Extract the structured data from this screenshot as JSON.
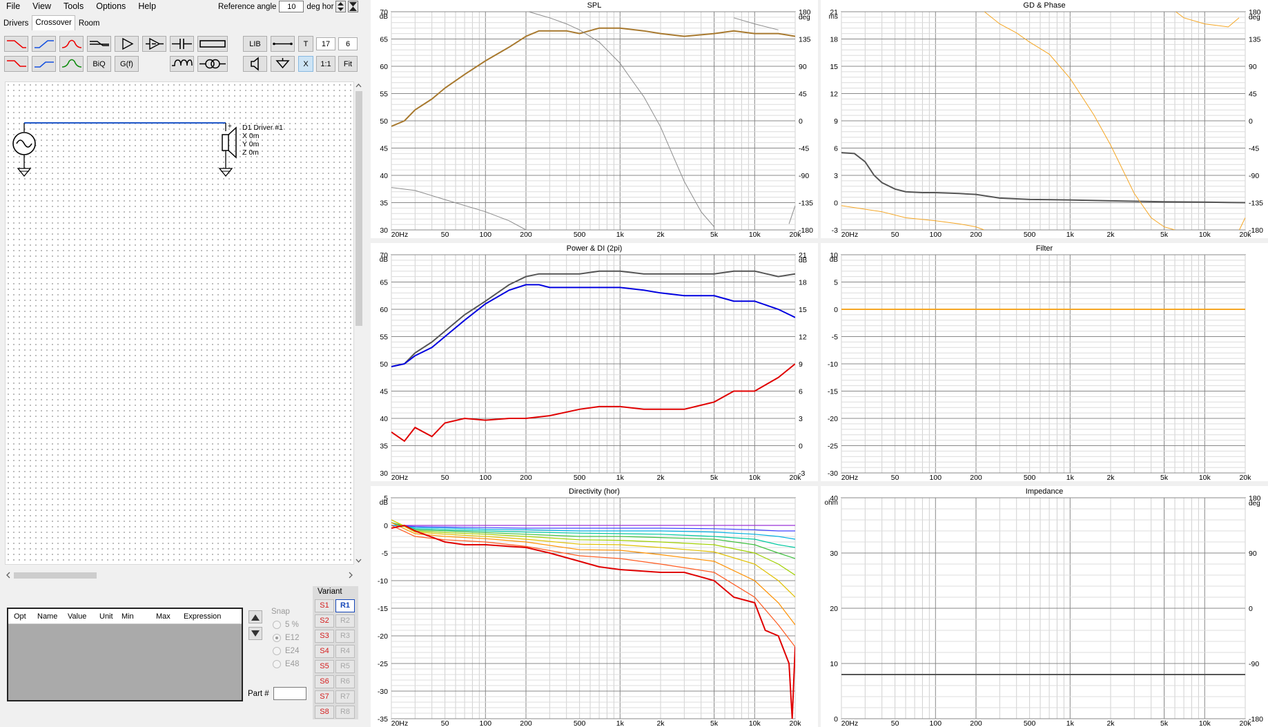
{
  "menu": [
    "File",
    "View",
    "Tools",
    "Options",
    "Help"
  ],
  "reference_angle": {
    "label": "Reference angle",
    "value": "10",
    "unit": "deg hor"
  },
  "tabs": [
    "Drivers",
    "Crossover",
    "Room"
  ],
  "toolbar": {
    "lib": "LIB",
    "t": "T",
    "val1": "17",
    "val2": "6",
    "biq": "BiQ",
    "gf": "G(f)",
    "x": "X",
    "one_to_one": "1:1",
    "fit": "Fit"
  },
  "schematic": {
    "driver_label": "D1 Driver #1",
    "x": "X 0m",
    "y": "Y 0m",
    "z": "Z 0m",
    "plus": "+"
  },
  "opt_columns": [
    "Opt",
    "Name",
    "Value",
    "Unit",
    "Min",
    "Max",
    "Expression"
  ],
  "snap": {
    "label": "Snap",
    "options": [
      "5 %",
      "E12",
      "E24",
      "E48"
    ],
    "selected": "E12"
  },
  "part": {
    "label": "Part #",
    "value": ""
  },
  "variant": {
    "title": "Variant",
    "s": [
      "S1",
      "S2",
      "S3",
      "S4",
      "S5",
      "S6",
      "S7",
      "S8"
    ],
    "r": [
      "R1",
      "R2",
      "R3",
      "R4",
      "R5",
      "R6",
      "R7",
      "R8"
    ],
    "selected": "R1"
  },
  "freq_ticks": [
    "20Hz",
    "50",
    "100",
    "200",
    "500",
    "1k",
    "2k",
    "5k",
    "10k",
    "20k"
  ],
  "colors": {
    "spl": "#a8792e",
    "gray": "#8c8c8c",
    "dark": "#555555",
    "blue": "#0000e0",
    "red": "#e00000",
    "orange": "#f5a623"
  },
  "graphs": [
    {
      "id": "spl",
      "title": "SPL",
      "left_unit": "dB",
      "right_unit": "deg",
      "left_ticks": [
        "70",
        "65",
        "60",
        "55",
        "50",
        "45",
        "40",
        "35",
        "30"
      ],
      "right_ticks": [
        "180",
        "135",
        "90",
        "45",
        "0",
        "-45",
        "-90",
        "-135",
        "-180"
      ]
    },
    {
      "id": "gd",
      "title": "GD & Phase",
      "left_unit": "ms",
      "right_unit": "deg",
      "left_ticks": [
        "21",
        "18",
        "15",
        "12",
        "9",
        "6",
        "3",
        "0",
        "-3"
      ],
      "right_ticks": [
        "180",
        "135",
        "90",
        "45",
        "0",
        "-45",
        "-90",
        "-135",
        "-180"
      ]
    },
    {
      "id": "power",
      "title": "Power & DI (2pi)",
      "left_unit": "dB",
      "right_unit": "dB",
      "left_ticks": [
        "70",
        "65",
        "60",
        "55",
        "50",
        "45",
        "40",
        "35",
        "30"
      ],
      "right_ticks": [
        "21",
        "18",
        "15",
        "12",
        "9",
        "6",
        "3",
        "0",
        "-3"
      ]
    },
    {
      "id": "filter",
      "title": "Filter",
      "left_unit": "dB",
      "right_unit": "",
      "left_ticks": [
        "10",
        "5",
        "0",
        "-5",
        "-10",
        "-15",
        "-20",
        "-25",
        "-30"
      ],
      "right_ticks": []
    },
    {
      "id": "dir",
      "title": "Directivity (hor)",
      "left_unit": "dB",
      "right_unit": "",
      "left_ticks": [
        "5",
        "0",
        "-5",
        "-10",
        "-15",
        "-20",
        "-25",
        "-30",
        "-35"
      ],
      "right_ticks": []
    },
    {
      "id": "imp",
      "title": "Impedance",
      "left_unit": "ohm",
      "right_unit": "deg",
      "left_ticks": [
        "40",
        "30",
        "20",
        "10",
        "0"
      ],
      "right_ticks": [
        "180",
        "90",
        "0",
        "-90",
        "-180"
      ]
    }
  ],
  "chart_data": [
    {
      "type": "line",
      "title": "SPL",
      "ylabel": "dB",
      "y2label": "deg",
      "ylim": [
        30,
        70
      ],
      "y2lim": [
        -180,
        180
      ],
      "xscale": "log",
      "xlim": [
        20,
        20000
      ],
      "series": [
        {
          "x": [
            20,
            25,
            30,
            40,
            50,
            70,
            100,
            150,
            200,
            250,
            300,
            400,
            500,
            700,
            1000,
            1500,
            2000,
            3000,
            5000,
            7000,
            10000,
            15000,
            20000
          ],
          "y": [
            49,
            50,
            52,
            54,
            56,
            58.5,
            61,
            63.5,
            65.5,
            66.5,
            66.5,
            66.5,
            66,
            67,
            67,
            66.5,
            66,
            65.5,
            66,
            66.5,
            66,
            66,
            65.5
          ]
        },
        {
          "axis": "y2",
          "x": [
            20,
            30,
            50,
            100,
            150,
            200,
            210,
            250,
            300,
            400,
            500,
            700,
            1000,
            1200,
            1500,
            2000,
            2500,
            3000,
            4000,
            5000,
            7000,
            10000,
            15000,
            18000,
            20000
          ],
          "y": [
            -110,
            -115,
            -130,
            -150,
            -165,
            -180,
            180,
            175,
            170,
            160,
            150,
            130,
            95,
            70,
            40,
            -10,
            -60,
            -100,
            -150,
            -175,
            170,
            160,
            150,
            -170,
            -140
          ]
        }
      ]
    },
    {
      "type": "line",
      "title": "GD & Phase",
      "ylabel": "ms",
      "y2label": "deg",
      "ylim": [
        -3,
        21
      ],
      "y2lim": [
        -180,
        180
      ],
      "xscale": "log",
      "xlim": [
        20,
        20000
      ],
      "series": [
        {
          "x": [
            20,
            25,
            30,
            35,
            40,
            50,
            60,
            80,
            100,
            150,
            200,
            300,
            500,
            1000,
            2000,
            5000,
            10000,
            20000
          ],
          "y": [
            5.5,
            5.4,
            4.5,
            3,
            2.2,
            1.5,
            1.2,
            1.1,
            1.1,
            1,
            0.9,
            0.5,
            0.35,
            0.3,
            0.2,
            0.1,
            0.05,
            0
          ]
        },
        {
          "axis": "y2",
          "x": [
            20,
            40,
            60,
            100,
            150,
            200,
            230,
            231,
            300,
            400,
            500,
            700,
            1000,
            1500,
            2000,
            3000,
            4000,
            5000,
            6000,
            6100,
            7000,
            10000,
            15000,
            18000,
            18100,
            20000
          ],
          "y": [
            -140,
            -150,
            -160,
            -165,
            -170,
            -175,
            -180,
            180,
            160,
            145,
            130,
            110,
            70,
            10,
            -40,
            -120,
            -160,
            -175,
            -180,
            180,
            170,
            160,
            155,
            170,
            -180,
            -160
          ]
        }
      ]
    },
    {
      "type": "line",
      "title": "Power & DI (2pi)",
      "ylabel": "dB",
      "y2label": "dB",
      "ylim": [
        30,
        70
      ],
      "y2lim": [
        -3,
        21
      ],
      "xscale": "log",
      "xlim": [
        20,
        20000
      ],
      "series": [
        {
          "x": [
            20,
            25,
            30,
            40,
            50,
            70,
            100,
            150,
            200,
            250,
            300,
            500,
            700,
            1000,
            1500,
            2000,
            3000,
            5000,
            7000,
            10000,
            15000,
            20000
          ],
          "y": [
            49.5,
            50,
            52,
            54,
            56,
            59,
            61.5,
            64.5,
            66,
            66.5,
            66.5,
            66.5,
            67,
            67,
            66.5,
            66.5,
            66.5,
            66.5,
            67,
            67,
            66,
            66.5
          ]
        },
        {
          "x": [
            20,
            25,
            30,
            40,
            50,
            70,
            100,
            150,
            200,
            250,
            300,
            500,
            700,
            1000,
            1500,
            2000,
            3000,
            5000,
            7000,
            10000,
            15000,
            20000
          ],
          "y": [
            49.5,
            50,
            51.5,
            53,
            55,
            58,
            61,
            63.5,
            64.5,
            64.5,
            64,
            64,
            64,
            64,
            63.5,
            63,
            62.5,
            62.5,
            61.5,
            61.5,
            60,
            58.5
          ]
        },
        {
          "axis": "y2",
          "x": [
            20,
            25,
            30,
            40,
            50,
            70,
            100,
            150,
            200,
            300,
            500,
            700,
            1000,
            1500,
            2000,
            3000,
            5000,
            7000,
            10000,
            15000,
            20000
          ],
          "y": [
            1.5,
            0.5,
            2,
            1,
            2.5,
            3,
            2.8,
            3,
            3,
            3.3,
            4,
            4.3,
            4.3,
            4,
            4,
            4,
            4.8,
            6,
            6,
            7.5,
            9
          ]
        }
      ]
    },
    {
      "type": "line",
      "title": "Filter",
      "ylabel": "dB",
      "ylim": [
        -30,
        10
      ],
      "xscale": "log",
      "xlim": [
        20,
        20000
      ],
      "series": [
        {
          "x": [
            20,
            20000
          ],
          "y": [
            0,
            0
          ]
        }
      ]
    },
    {
      "type": "line",
      "title": "Directivity (hor)",
      "ylabel": "dB",
      "ylim": [
        -35,
        5
      ],
      "xscale": "log",
      "xlim": [
        20,
        20000
      ],
      "series": [
        {
          "x": [
            20,
            30,
            50,
            100,
            200,
            500,
            1000,
            2000,
            5000,
            10000,
            15000,
            20000
          ],
          "y": [
            0,
            0,
            0,
            0,
            0,
            0,
            0,
            0,
            0,
            0,
            0,
            0
          ]
        },
        {
          "x": [
            20,
            30,
            50,
            100,
            200,
            500,
            1000,
            2000,
            5000,
            10000,
            15000,
            20000
          ],
          "y": [
            0,
            -0.2,
            -0.3,
            -0.4,
            -0.5,
            -0.5,
            -0.5,
            -0.5,
            -0.6,
            -0.8,
            -1,
            -1
          ]
        },
        {
          "x": [
            20,
            30,
            50,
            100,
            200,
            500,
            1000,
            2000,
            5000,
            10000,
            15000,
            20000
          ],
          "y": [
            0,
            -0.4,
            -0.5,
            -0.7,
            -0.8,
            -1,
            -1,
            -1,
            -1.2,
            -1.6,
            -2,
            -2.5
          ]
        },
        {
          "x": [
            20,
            30,
            50,
            100,
            200,
            500,
            1000,
            2000,
            5000,
            10000,
            15000,
            20000
          ],
          "y": [
            0.5,
            -0.6,
            -0.8,
            -1,
            -1.2,
            -1.4,
            -1.5,
            -1.6,
            -2,
            -2.5,
            -3.5,
            -4
          ]
        },
        {
          "x": [
            20,
            30,
            50,
            100,
            200,
            500,
            1000,
            2000,
            5000,
            10000,
            15000,
            20000
          ],
          "y": [
            0.5,
            -0.8,
            -1,
            -1.3,
            -1.6,
            -2,
            -2,
            -2.2,
            -2.5,
            -3.5,
            -5,
            -6
          ]
        },
        {
          "x": [
            20,
            30,
            50,
            100,
            200,
            500,
            1000,
            2000,
            5000,
            10000,
            15000,
            20000
          ],
          "y": [
            1,
            -1,
            -1.3,
            -1.6,
            -2,
            -2.6,
            -2.7,
            -3,
            -3.5,
            -5,
            -7,
            -9
          ]
        },
        {
          "x": [
            20,
            30,
            50,
            100,
            200,
            500,
            1000,
            2000,
            5000,
            10000,
            15000,
            20000
          ],
          "y": [
            1,
            -1.2,
            -1.6,
            -2,
            -2.5,
            -3.4,
            -3.5,
            -4,
            -4.8,
            -7,
            -10,
            -13
          ]
        },
        {
          "x": [
            20,
            30,
            50,
            100,
            200,
            500,
            1000,
            2000,
            5000,
            10000,
            15000,
            20000
          ],
          "y": [
            0.5,
            -1.5,
            -2,
            -2.4,
            -3,
            -4.4,
            -4.5,
            -5.3,
            -6.5,
            -10,
            -14,
            -18
          ]
        },
        {
          "x": [
            20,
            30,
            50,
            100,
            200,
            500,
            1000,
            2000,
            5000,
            10000,
            15000,
            20000
          ],
          "y": [
            0,
            -2,
            -2.6,
            -3,
            -3.8,
            -5.5,
            -6,
            -7,
            -8.5,
            -13,
            -18,
            -22
          ]
        },
        {
          "x": [
            20,
            25,
            30,
            50,
            70,
            100,
            200,
            300,
            500,
            700,
            1000,
            2000,
            3000,
            5000,
            7000,
            10000,
            12000,
            15000,
            18000,
            19000,
            20000
          ],
          "y": [
            -0.5,
            0,
            -1,
            -3,
            -3.5,
            -3.5,
            -4,
            -5,
            -6.5,
            -7.5,
            -8,
            -8.5,
            -8.5,
            -10,
            -13,
            -14,
            -19,
            -20,
            -25,
            -35,
            -22
          ]
        }
      ]
    },
    {
      "type": "line",
      "title": "Impedance",
      "ylabel": "ohm",
      "y2label": "deg",
      "ylim": [
        0,
        40
      ],
      "y2lim": [
        -180,
        180
      ],
      "xscale": "log",
      "xlim": [
        20,
        20000
      ],
      "series": [
        {
          "x": [
            20,
            20000
          ],
          "y": [
            8,
            8
          ]
        }
      ]
    }
  ]
}
